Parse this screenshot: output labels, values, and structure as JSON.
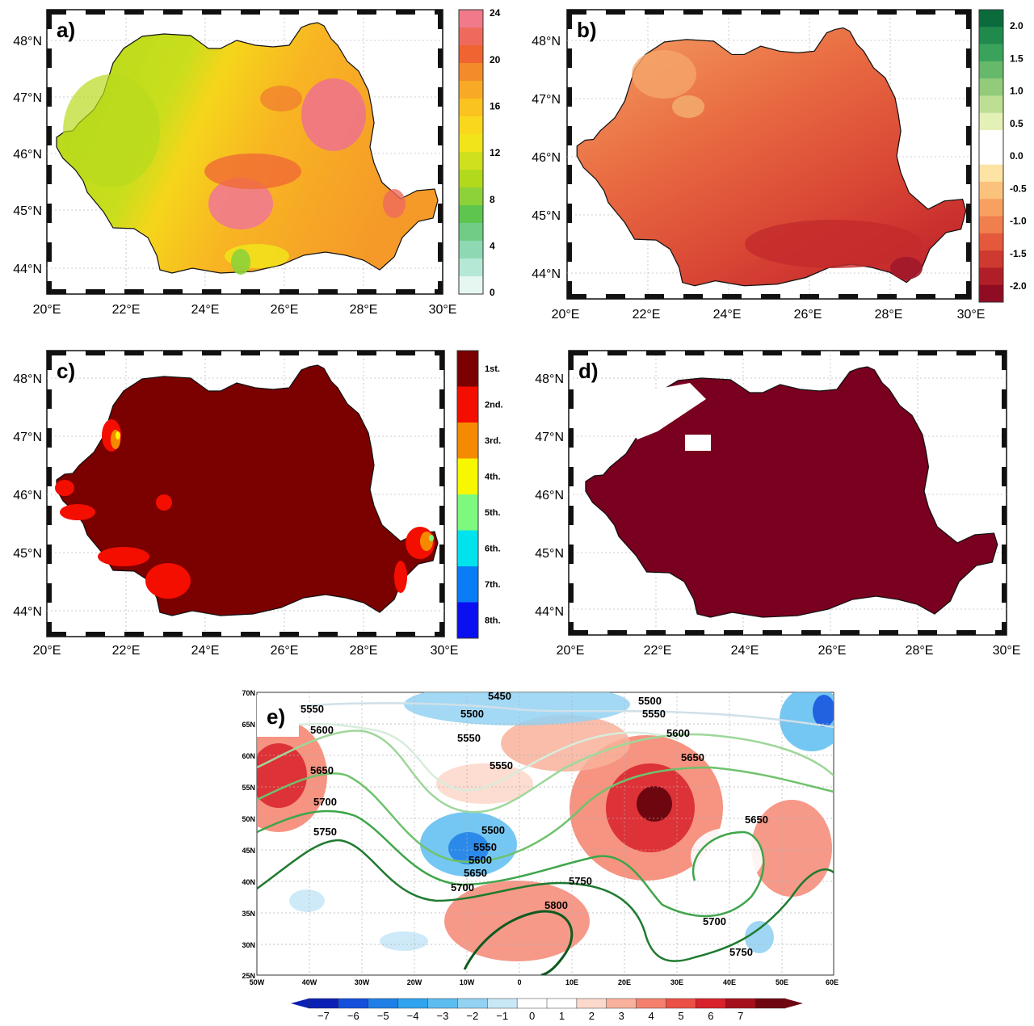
{
  "colors": {
    "border": "#111111",
    "grid": "#bdbdbd",
    "panel_c_main": "#7b0000",
    "panel_d_main": "#7a0020"
  },
  "lon_labels": [
    "20°E",
    "22°E",
    "24°E",
    "26°E",
    "28°E",
    "30°E"
  ],
  "lat_labels": [
    "48°N",
    "47°N",
    "46°N",
    "45°N",
    "44°N"
  ],
  "panels": [
    {
      "id": "a",
      "label": "a)"
    },
    {
      "id": "b",
      "label": "b)"
    },
    {
      "id": "c",
      "label": "c)"
    },
    {
      "id": "d",
      "label": "d)"
    },
    {
      "id": "e",
      "label": "e)"
    }
  ],
  "colorbar_a": {
    "ticks": [
      "24",
      "20",
      "16",
      "12",
      "8",
      "4",
      "0"
    ],
    "colors": [
      "#f07a8a",
      "#ef6a5c",
      "#f06432",
      "#f38b2a",
      "#f8aa26",
      "#fbc31f",
      "#f9d71c",
      "#f1e41b",
      "#cfe01c",
      "#b3d91d",
      "#8ed23a",
      "#5ec64f",
      "#6fcd86",
      "#8ed9b3",
      "#b6e8d6",
      "#e6f7f1"
    ]
  },
  "colorbar_b": {
    "ticks": [
      "2.0",
      "1.5",
      "1.0",
      "0.5",
      "0.0",
      "-0.5",
      "-1.0",
      "-1.5",
      "-2.0"
    ],
    "colors": [
      "#0c6b3c",
      "#1f8a4c",
      "#3aa35b",
      "#66b86b",
      "#92cc7a",
      "#bddf94",
      "#e3f0b6",
      "#ffffff",
      "#ffffff",
      "#fde3a4",
      "#fbc27d",
      "#f7a060",
      "#f07f4d",
      "#e4593b",
      "#cf3a30",
      "#b01f28",
      "#900c22"
    ]
  },
  "colorbar_c": {
    "ticks": [
      "1st.",
      "2nd.",
      "3rd.",
      "4th.",
      "5th.",
      "6th.",
      "7th.",
      "8th."
    ],
    "colors": [
      "#7b0000",
      "#f40e00",
      "#f58a00",
      "#f7f700",
      "#7df97d",
      "#00e3ed",
      "#0a7cf6",
      "#0a10f0"
    ]
  },
  "panel_e": {
    "lon_labels": [
      "50W",
      "40W",
      "30W",
      "20W",
      "10W",
      "0",
      "10E",
      "20E",
      "30E",
      "40E",
      "50E",
      "60E"
    ],
    "lat_labels": [
      "70N",
      "65N",
      "60N",
      "55N",
      "50N",
      "45N",
      "40N",
      "35N",
      "30N",
      "25N"
    ],
    "contour_labels": [
      "5450",
      "5500",
      "5500",
      "5550",
      "5550",
      "5550",
      "5550",
      "5600",
      "5600",
      "5650",
      "5650",
      "5650",
      "5700",
      "5750",
      "5500",
      "5550",
      "5600",
      "5650",
      "5700",
      "5750",
      "5800",
      "5700",
      "5750"
    ],
    "colorbar_ticks": [
      "−7",
      "−6",
      "−5",
      "−4",
      "−3",
      "−2",
      "−1",
      "0",
      "1",
      "2",
      "3",
      "4",
      "5",
      "6",
      "7"
    ],
    "colorbar_colors": [
      "#0a1fb4",
      "#1450dc",
      "#1f7fe6",
      "#2fa3ee",
      "#5cbdf1",
      "#93d2f3",
      "#c9e8f7",
      "#ffffff",
      "#ffffff",
      "#fdd9cc",
      "#f9b19b",
      "#f4806b",
      "#ec4f43",
      "#d8212b",
      "#a50f1b",
      "#6e0610"
    ]
  }
}
